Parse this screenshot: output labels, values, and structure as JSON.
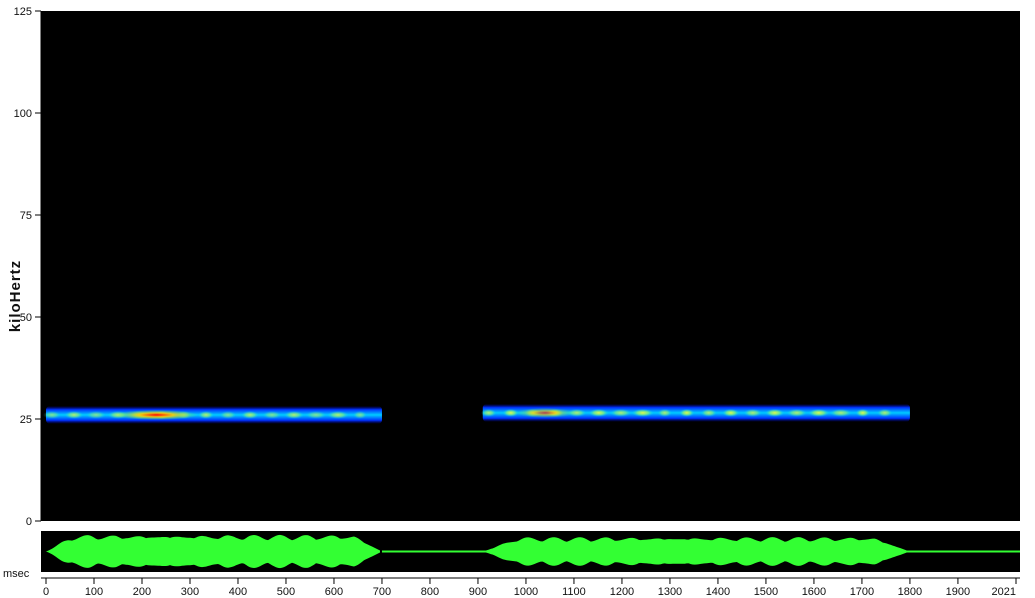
{
  "chart_data": {
    "type": "heatmap",
    "subtype": "spectrogram with oscillogram",
    "ylabel": "kiloHertz",
    "x_unit_label": "msec",
    "xlim": [
      0,
      2021
    ],
    "ylim": [
      0,
      125
    ],
    "y_ticks": [
      0,
      25,
      50,
      75,
      100,
      125
    ],
    "x_ticks": [
      0,
      100,
      200,
      300,
      400,
      500,
      600,
      700,
      800,
      900,
      1000,
      1100,
      1200,
      1300,
      1400,
      1500,
      1600,
      1700,
      1800,
      1900,
      2021
    ],
    "grid": false,
    "background_color": "#000000",
    "colormap": [
      "#000033",
      "#0000cc",
      "#0066ff",
      "#00ccff",
      "#66ff66",
      "#ffff00",
      "#ff0000"
    ],
    "call_bands": [
      {
        "start_ms": 0,
        "end_ms": 700,
        "freq_khz": 26,
        "peak_ms": 230,
        "peak_intensity": 1.0
      },
      {
        "start_ms": 910,
        "end_ms": 1800,
        "freq_khz": 26.5,
        "peak_ms": 1040,
        "peak_intensity": 0.7
      }
    ],
    "oscillogram": {
      "color": "#33ff33",
      "segments": [
        {
          "start_ms": 0,
          "end_ms": 700,
          "amplitude": 0.75
        },
        {
          "start_ms": 910,
          "end_ms": 1800,
          "amplitude": 0.65
        }
      ],
      "baseline_after_ms": 700
    }
  }
}
